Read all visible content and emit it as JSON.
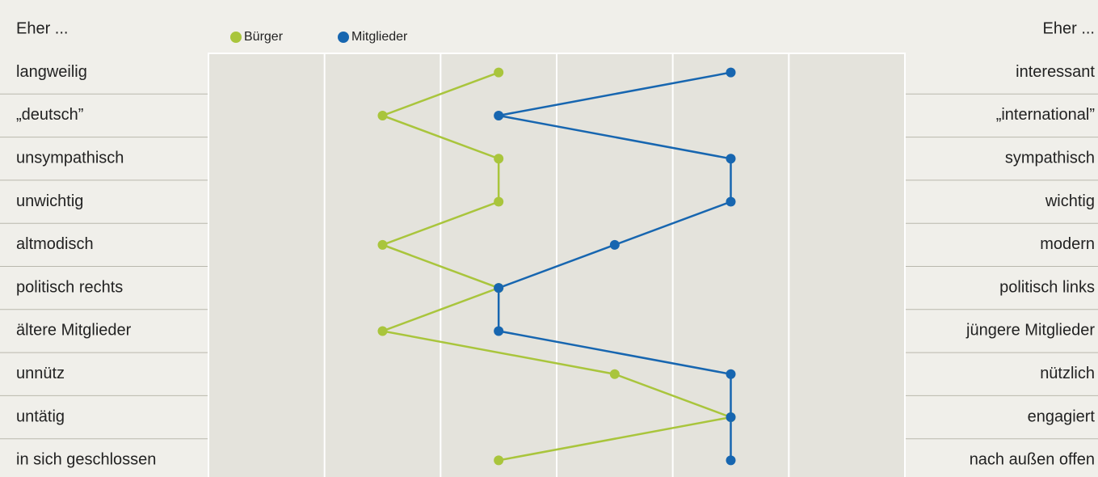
{
  "chart_data": {
    "type": "line",
    "left_header": "Eher ...",
    "right_header": "Eher ...",
    "categories": [
      "langweilig",
      "„deutsch”",
      "unsympathisch",
      "unwichtig",
      "altmodisch",
      "politisch rechts",
      "ältere Mitglieder",
      "unnütz",
      "untätig",
      "in sich geschlossen"
    ],
    "right_categories": [
      "interessant",
      "„international”",
      "sympathisch",
      "wichtig",
      "modern",
      "politisch links",
      "jüngere Mitglieder",
      "nützlich",
      "engagiert",
      "nach außen offen"
    ],
    "series": [
      {
        "name": "Bürger",
        "color": "#a9c53c",
        "values": [
          3,
          2,
          3,
          3,
          2,
          3,
          2,
          4,
          5,
          3
        ]
      },
      {
        "name": "Mitglieder",
        "color": "#1766b0",
        "values": [
          5,
          3,
          5,
          5,
          4,
          3,
          3,
          5,
          5,
          5
        ]
      }
    ],
    "xlim": [
      0.5,
      6.5
    ],
    "xticks": [
      1.5,
      2.5,
      3.5,
      4.5,
      5.5
    ],
    "grid": true
  }
}
